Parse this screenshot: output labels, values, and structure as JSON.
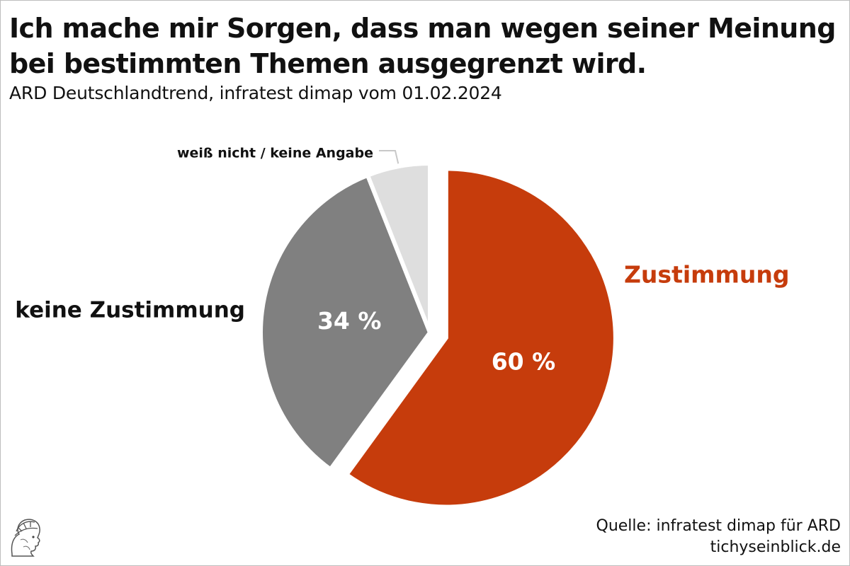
{
  "title": "Ich mache mir Sorgen, dass man wegen seiner Meinung bei bestimmten Themen ausgegrenzt wird.",
  "subtitle": "ARD Deutschlandtrend, infratest dimap vom 01.02.2024",
  "source": {
    "line1": "Quelle: infratest dimap für ARD",
    "line2": "tichyseinblick.de"
  },
  "colors": {
    "zustimmung": "#c63c0c",
    "keine_zustimmung": "#808080",
    "weiss_nicht": "#dedede",
    "text": "#111111"
  },
  "chart_data": {
    "type": "pie",
    "title": "Ich mache mir Sorgen, dass man wegen seiner Meinung bei bestimmten Themen ausgegrenzt wird.",
    "subtitle": "ARD Deutschlandtrend, infratest dimap vom 01.02.2024",
    "unit": "%",
    "start_angle_deg": 0,
    "direction": "clockwise",
    "slices": [
      {
        "label": "Zustimmung",
        "value": 60,
        "value_label": "60 %",
        "color": "#c63c0c",
        "exploded": true
      },
      {
        "label": "keine Zustimmung",
        "value": 34,
        "value_label": "34 %",
        "color": "#808080",
        "exploded": false
      },
      {
        "label": "weiß nicht / keine Angabe",
        "value": 6,
        "value_label": "",
        "color": "#dedede",
        "exploded": false
      }
    ]
  }
}
